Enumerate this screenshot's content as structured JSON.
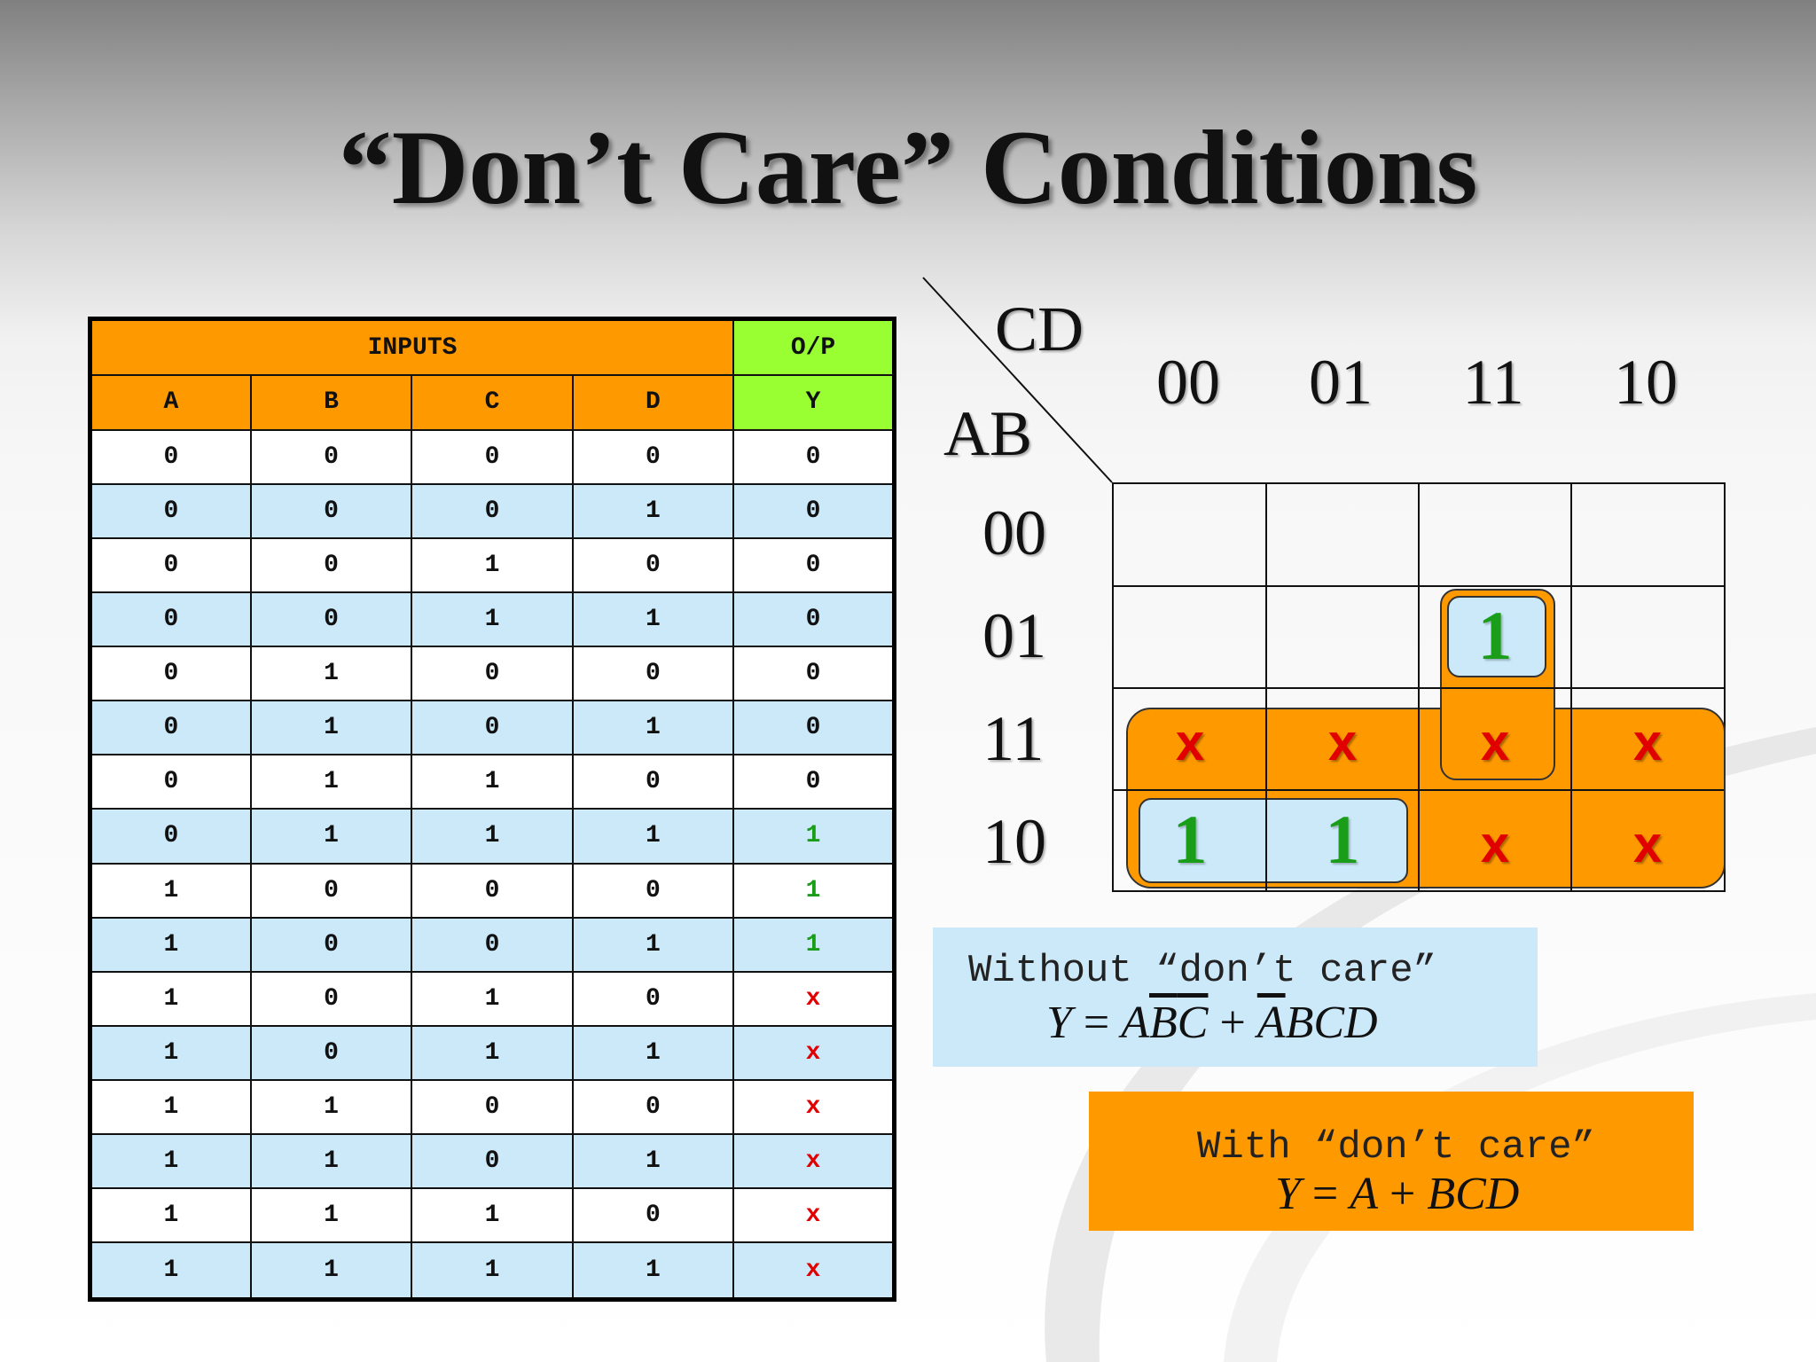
{
  "title": "“Don’t Care” Conditions",
  "truth_table": {
    "group_headers": {
      "inputs": "INPUTS",
      "output": "O/P"
    },
    "columns": [
      "A",
      "B",
      "C",
      "D",
      "Y"
    ],
    "rows": [
      [
        "0",
        "0",
        "0",
        "0",
        "0"
      ],
      [
        "0",
        "0",
        "0",
        "1",
        "0"
      ],
      [
        "0",
        "0",
        "1",
        "0",
        "0"
      ],
      [
        "0",
        "0",
        "1",
        "1",
        "0"
      ],
      [
        "0",
        "1",
        "0",
        "0",
        "0"
      ],
      [
        "0",
        "1",
        "0",
        "1",
        "0"
      ],
      [
        "0",
        "1",
        "1",
        "0",
        "0"
      ],
      [
        "0",
        "1",
        "1",
        "1",
        "1"
      ],
      [
        "1",
        "0",
        "0",
        "0",
        "1"
      ],
      [
        "1",
        "0",
        "0",
        "1",
        "1"
      ],
      [
        "1",
        "0",
        "1",
        "0",
        "x"
      ],
      [
        "1",
        "0",
        "1",
        "1",
        "x"
      ],
      [
        "1",
        "1",
        "0",
        "0",
        "x"
      ],
      [
        "1",
        "1",
        "0",
        "1",
        "x"
      ],
      [
        "1",
        "1",
        "1",
        "0",
        "x"
      ],
      [
        "1",
        "1",
        "1",
        "1",
        "x"
      ]
    ]
  },
  "kmap": {
    "col_var": "CD",
    "row_var": "AB",
    "col_labels": [
      "00",
      "01",
      "11",
      "10"
    ],
    "row_labels": [
      "00",
      "01",
      "11",
      "10"
    ],
    "cells": [
      [
        "",
        "",
        "",
        ""
      ],
      [
        "",
        "",
        "1",
        ""
      ],
      [
        "x",
        "x",
        "x",
        "x"
      ],
      [
        "1",
        "1",
        "x",
        "x"
      ]
    ]
  },
  "without_box": {
    "label": "Without “don’t care”",
    "eq": {
      "y": "Y",
      "eq": " = ",
      "a": "A",
      "b": "B",
      "c": "C",
      "plus": " + ",
      "a2": "A",
      "bcd": "BCD"
    }
  },
  "with_box": {
    "label": "With “don’t care”",
    "eq": {
      "y": "Y",
      "eq": " = ",
      "a": "A",
      "plus": " + ",
      "bcd": "BCD"
    }
  },
  "colors": {
    "orange": "#ff9900",
    "green_header": "#99ff33",
    "light_blue": "#cce9fa",
    "one_green": "#1a9e1a",
    "x_red": "#e00000"
  }
}
